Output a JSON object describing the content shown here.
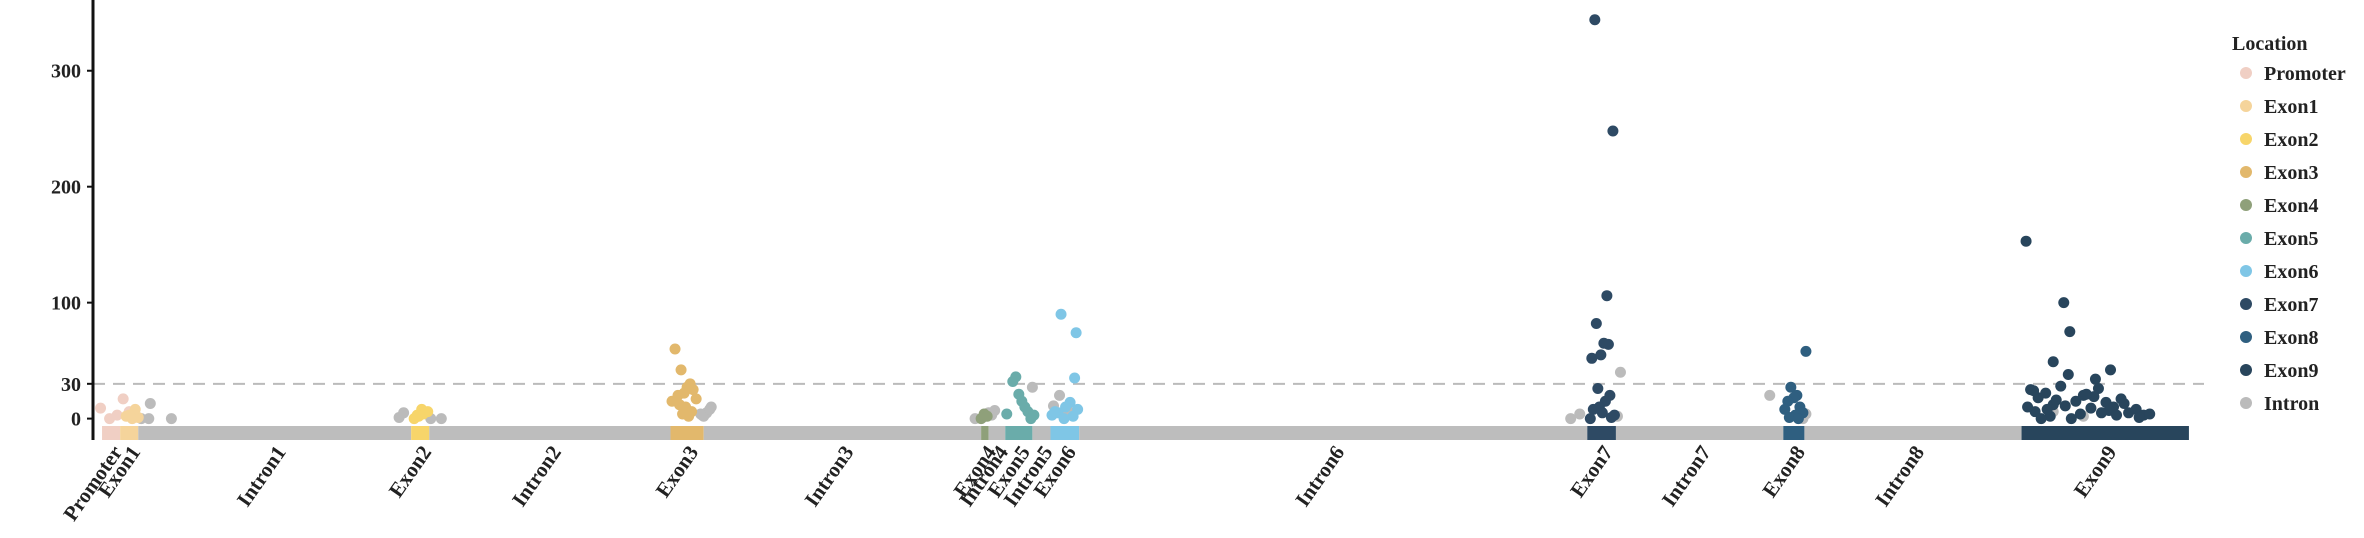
{
  "chart_data": {
    "type": "scatter",
    "ylim": [
      -15,
      361
    ],
    "yticks": [
      0,
      30,
      100,
      200,
      300
    ],
    "xlim": [
      0,
      1400
    ],
    "reference_line": 30,
    "legend_title": "Location",
    "legend_position": "right",
    "regions": [
      {
        "name": "Promoter",
        "start": 6,
        "end": 18,
        "color": "#f0cfc4"
      },
      {
        "name": "Exon1",
        "start": 18,
        "end": 30,
        "color": "#f5d49b"
      },
      {
        "name": "Intron1",
        "start": 30,
        "end": 211,
        "color": "#bdbdbd"
      },
      {
        "name": "Exon2",
        "start": 211,
        "end": 223,
        "color": "#f7d56a"
      },
      {
        "name": "Intron2",
        "start": 223,
        "end": 383,
        "color": "#bdbdbd"
      },
      {
        "name": "Exon3",
        "start": 383,
        "end": 405,
        "color": "#e2b86c"
      },
      {
        "name": "Intron3",
        "start": 405,
        "end": 589,
        "color": "#bdbdbd"
      },
      {
        "name": "Exon4",
        "start": 589,
        "end": 594,
        "color": "#8fa07a"
      },
      {
        "name": "Intron4",
        "start": 594,
        "end": 605,
        "color": "#bdbdbd"
      },
      {
        "name": "Exon5",
        "start": 605,
        "end": 623,
        "color": "#6aacaa"
      },
      {
        "name": "Intron5",
        "start": 623,
        "end": 635,
        "color": "#bdbdbd"
      },
      {
        "name": "Exon6",
        "start": 635,
        "end": 654,
        "color": "#7fc6e6"
      },
      {
        "name": "Intron6",
        "start": 654,
        "end": 991,
        "color": "#bdbdbd"
      },
      {
        "name": "Exon7",
        "start": 991,
        "end": 1010,
        "color": "#2e4a64"
      },
      {
        "name": "Intron7",
        "start": 1010,
        "end": 1121,
        "color": "#bdbdbd"
      },
      {
        "name": "Exon8",
        "start": 1121,
        "end": 1135,
        "color": "#2f5f80"
      },
      {
        "name": "Intron8",
        "start": 1135,
        "end": 1279,
        "color": "#bdbdbd"
      },
      {
        "name": "Exon9",
        "start": 1279,
        "end": 1390,
        "color": "#28455c"
      }
    ],
    "series": [
      {
        "name": "Promoter",
        "color": "#f0cfc4",
        "x": [
          5,
          11,
          20,
          16,
          24
        ],
        "values": [
          9,
          0,
          17,
          3,
          6
        ]
      },
      {
        "name": "Exon1",
        "color": "#f5d49b",
        "x": [
          22,
          26,
          30,
          28,
          24
        ],
        "values": [
          2,
          0,
          1,
          8,
          3
        ]
      },
      {
        "name": "Exon2",
        "color": "#f7d56a",
        "x": [
          213,
          216,
          219,
          222,
          218,
          215
        ],
        "values": [
          0,
          2,
          4,
          6,
          8,
          3
        ]
      },
      {
        "name": "Exon3",
        "color": "#e2b86c",
        "x": [
          386,
          390,
          394,
          396,
          398,
          392,
          388,
          400,
          384,
          393,
          397,
          391,
          395,
          389
        ],
        "values": [
          60,
          42,
          27,
          30,
          25,
          22,
          20,
          17,
          15,
          10,
          6,
          4,
          2,
          12
        ]
      },
      {
        "name": "Exon4",
        "color": "#8fa07a",
        "x": [
          589,
          591,
          593
        ],
        "values": [
          0,
          4,
          2
        ]
      },
      {
        "name": "Exon5",
        "color": "#6aacaa",
        "x": [
          610,
          612,
          614,
          618,
          620,
          624,
          616,
          606,
          622
        ],
        "values": [
          32,
          36,
          21,
          10,
          6,
          3,
          15,
          4,
          0
        ]
      },
      {
        "name": "Exon6",
        "color": "#7fc6e6",
        "x": [
          642,
          652,
          651,
          648,
          645,
          653,
          640,
          636,
          650,
          644,
          638
        ],
        "values": [
          90,
          74,
          35,
          14,
          10,
          8,
          5,
          3,
          2,
          0,
          6
        ]
      },
      {
        "name": "Exon7",
        "color": "#2e4a64",
        "x": [
          996,
          1008,
          1004,
          997,
          1002,
          1005,
          994,
          1000,
          998,
          1006,
          1003,
          999,
          995,
          1001,
          1009,
          1007,
          993
        ],
        "values": [
          344,
          248,
          106,
          82,
          65,
          64,
          52,
          55,
          26,
          20,
          15,
          10,
          8,
          5,
          3,
          1,
          0
        ]
      },
      {
        "name": "Exon8",
        "color": "#2f5f80",
        "x": [
          1136,
          1126,
          1130,
          1128,
          1124,
          1132,
          1122,
          1134,
          1129,
          1125,
          1131
        ],
        "values": [
          58,
          27,
          20,
          18,
          15,
          10,
          8,
          5,
          3,
          1,
          0
        ]
      },
      {
        "name": "Exon9",
        "color": "#28455c",
        "x": [
          1282,
          1307,
          1311,
          1300,
          1310,
          1338,
          1328,
          1285,
          1290,
          1295,
          1300,
          1305,
          1315,
          1320,
          1325,
          1330,
          1335,
          1340,
          1345,
          1350,
          1355,
          1360,
          1288,
          1298,
          1308,
          1318,
          1327,
          1337,
          1347,
          1357,
          1292,
          1302,
          1312,
          1322,
          1332,
          1342,
          1364,
          1283,
          1287,
          1296
        ],
        "values": [
          153,
          100,
          75,
          49,
          38,
          42,
          34,
          25,
          18,
          22,
          12,
          28,
          15,
          20,
          9,
          26,
          14,
          10,
          17,
          5,
          8,
          3,
          6,
          2,
          11,
          4,
          19,
          7,
          13,
          1,
          0,
          16,
          0,
          21,
          5,
          3,
          4,
          10,
          24,
          8
        ]
      },
      {
        "name": "Intron",
        "color": "#bbbbbb",
        "x": [
          32,
          37,
          38,
          52,
          203,
          224,
          231,
          206,
          405,
          407,
          409,
          410,
          404,
          403,
          585,
          590,
          594,
          598,
          596,
          623,
          637,
          641,
          647,
          980,
          986,
          1011,
          1013,
          1112,
          1136,
          1134,
          1300,
          1320
        ],
        "values": [
          0,
          0,
          13,
          0,
          1,
          0,
          0,
          5,
          2,
          5,
          8,
          10,
          3,
          4,
          0,
          1,
          5,
          7,
          3,
          27,
          11,
          20,
          6,
          0,
          4,
          2,
          40,
          20,
          4,
          0,
          6,
          2
        ]
      }
    ]
  }
}
